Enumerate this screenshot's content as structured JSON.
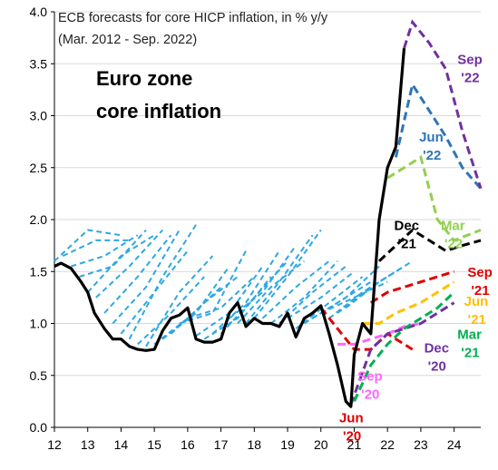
{
  "chart_data": {
    "type": "line",
    "title_line1": "ECB forecasts for core HICP inflation, in % y/y",
    "title_line2": "(Mar. 2012 - Sep. 2022)",
    "heading_line1": "Euro zone",
    "heading_line2": "core inflation",
    "xlim": [
      12,
      24.8
    ],
    "ylim": [
      0.0,
      4.0
    ],
    "x_ticks": [
      {
        "value": 12,
        "label": "12"
      },
      {
        "value": 13,
        "label": "13"
      },
      {
        "value": 14,
        "label": "14"
      },
      {
        "value": 15,
        "label": "15"
      },
      {
        "value": 16,
        "label": "16"
      },
      {
        "value": 17,
        "label": "17"
      },
      {
        "value": 18,
        "label": "18"
      },
      {
        "value": 19,
        "label": "19"
      },
      {
        "value": 20,
        "label": "20"
      },
      {
        "value": 21,
        "label": "21"
      },
      {
        "value": 22,
        "label": "22"
      },
      {
        "value": 23,
        "label": "23"
      },
      {
        "value": 24,
        "label": "24"
      }
    ],
    "y_ticks": [
      {
        "value": 0.0,
        "label": "0.0"
      },
      {
        "value": 0.5,
        "label": "0.5"
      },
      {
        "value": 1.0,
        "label": "1.0"
      },
      {
        "value": 1.5,
        "label": "1.5"
      },
      {
        "value": 2.0,
        "label": "2.0"
      },
      {
        "value": 2.5,
        "label": "2.5"
      },
      {
        "value": 3.0,
        "label": "3.0"
      },
      {
        "value": 3.5,
        "label": "3.5"
      },
      {
        "value": 4.0,
        "label": "4.0"
      }
    ],
    "colors": {
      "actual": "#000000",
      "past_forecasts": "#2ea8e0",
      "jun20": "#e00000",
      "sep20": "#ff66ff",
      "dec20": "#7030a0",
      "mar21": "#00b050",
      "jun21": "#ffc000",
      "sep21": "#e00000",
      "dec21": "#000000",
      "mar22": "#92d050",
      "jun22": "#2e75b6",
      "sep22": "#7030a0"
    },
    "actual": {
      "x": [
        12.0,
        12.2,
        12.5,
        12.8,
        13.0,
        13.2,
        13.5,
        13.75,
        14.0,
        14.25,
        14.5,
        14.75,
        15.0,
        15.25,
        15.5,
        15.75,
        16.0,
        16.25,
        16.5,
        16.75,
        17.0,
        17.25,
        17.5,
        17.75,
        18.0,
        18.25,
        18.5,
        18.75,
        19.0,
        19.25,
        19.5,
        19.75,
        20.0,
        20.25,
        20.5,
        20.75,
        20.9,
        21.0,
        21.25,
        21.5,
        21.75,
        22.0,
        22.25,
        22.5
      ],
      "y": [
        1.55,
        1.58,
        1.53,
        1.4,
        1.3,
        1.1,
        0.95,
        0.85,
        0.85,
        0.78,
        0.75,
        0.74,
        0.75,
        0.93,
        1.05,
        1.08,
        1.15,
        0.85,
        0.82,
        0.82,
        0.85,
        1.1,
        1.2,
        0.97,
        1.05,
        1.0,
        1.0,
        0.97,
        1.1,
        0.87,
        1.05,
        1.1,
        1.17,
        0.9,
        0.6,
        0.25,
        0.2,
        0.7,
        1.0,
        0.9,
        2.0,
        2.5,
        2.7,
        3.65
      ]
    },
    "past_forecasts": [
      {
        "x": [
          12.0,
          13.0,
          14.0
        ],
        "y": [
          1.6,
          1.9,
          1.85
        ]
      },
      {
        "x": [
          12.25,
          13.25,
          14.25
        ],
        "y": [
          1.65,
          1.8,
          1.8
        ]
      },
      {
        "x": [
          12.5,
          13.5,
          14.5
        ],
        "y": [
          1.55,
          1.65,
          1.85
        ]
      },
      {
        "x": [
          12.75,
          13.75,
          14.75
        ],
        "y": [
          1.45,
          1.55,
          1.9
        ]
      },
      {
        "x": [
          13.0,
          14.0,
          15.0
        ],
        "y": [
          1.3,
          1.65,
          1.85
        ]
      },
      {
        "x": [
          13.25,
          14.25,
          15.25
        ],
        "y": [
          1.25,
          1.55,
          1.9
        ]
      },
      {
        "x": [
          13.5,
          14.5,
          15.5
        ],
        "y": [
          1.1,
          1.45,
          1.85
        ]
      },
      {
        "x": [
          13.75,
          14.75,
          15.75
        ],
        "y": [
          1.0,
          1.35,
          1.9
        ]
      },
      {
        "x": [
          14.0,
          15.0,
          16.0
        ],
        "y": [
          0.9,
          1.3,
          1.7
        ]
      },
      {
        "x": [
          14.25,
          15.25,
          16.25
        ],
        "y": [
          0.85,
          1.45,
          1.95
        ]
      },
      {
        "x": [
          14.5,
          15.5,
          16.5
        ],
        "y": [
          0.8,
          1.1,
          1.45
        ]
      },
      {
        "x": [
          14.75,
          15.75,
          16.75
        ],
        "y": [
          0.78,
          1.3,
          1.65
        ]
      },
      {
        "x": [
          15.0,
          16.0,
          17.0
        ],
        "y": [
          0.8,
          1.05,
          1.35
        ]
      },
      {
        "x": [
          15.25,
          16.25,
          17.25
        ],
        "y": [
          0.85,
          1.1,
          1.55
        ]
      },
      {
        "x": [
          15.5,
          16.5,
          17.5
        ],
        "y": [
          0.9,
          1.2,
          1.45
        ]
      },
      {
        "x": [
          15.75,
          16.75,
          17.75
        ],
        "y": [
          1.0,
          1.1,
          1.7
        ]
      },
      {
        "x": [
          16.0,
          17.0,
          18.0
        ],
        "y": [
          1.05,
          1.15,
          1.45
        ]
      },
      {
        "x": [
          16.25,
          17.25,
          18.25
        ],
        "y": [
          0.88,
          1.1,
          1.55
        ]
      },
      {
        "x": [
          16.5,
          17.5,
          18.5
        ],
        "y": [
          0.85,
          1.05,
          1.45
        ]
      },
      {
        "x": [
          16.75,
          17.75,
          18.75
        ],
        "y": [
          0.9,
          1.2,
          1.7
        ]
      },
      {
        "x": [
          17.0,
          18.0,
          19.0
        ],
        "y": [
          0.9,
          1.25,
          1.6
        ]
      },
      {
        "x": [
          17.25,
          18.25,
          19.25
        ],
        "y": [
          1.05,
          1.3,
          1.75
        ]
      },
      {
        "x": [
          17.5,
          18.5,
          19.5
        ],
        "y": [
          1.0,
          1.35,
          1.6
        ]
      },
      {
        "x": [
          17.75,
          18.75,
          19.75
        ],
        "y": [
          1.0,
          1.4,
          1.85
        ]
      },
      {
        "x": [
          18.0,
          19.0,
          20.0
        ],
        "y": [
          1.05,
          1.45,
          1.9
        ]
      },
      {
        "x": [
          18.25,
          19.25,
          20.25
        ],
        "y": [
          1.05,
          1.35,
          1.6
        ]
      },
      {
        "x": [
          18.5,
          19.5,
          20.5
        ],
        "y": [
          1.0,
          1.25,
          1.6
        ]
      },
      {
        "x": [
          18.75,
          19.75,
          20.75
        ],
        "y": [
          1.0,
          1.3,
          1.55
        ]
      },
      {
        "x": [
          19.0,
          20.0,
          21.0
        ],
        "y": [
          1.05,
          1.25,
          1.5
        ]
      },
      {
        "x": [
          19.25,
          20.25,
          21.25
        ],
        "y": [
          0.95,
          1.2,
          1.45
        ]
      },
      {
        "x": [
          19.5,
          20.5,
          21.5
        ],
        "y": [
          1.0,
          1.2,
          1.4
        ]
      },
      {
        "x": [
          19.75,
          20.75,
          21.75
        ],
        "y": [
          1.05,
          1.25,
          1.55
        ]
      },
      {
        "x": [
          20.0,
          21.0,
          22.0
        ],
        "y": [
          1.1,
          1.25,
          1.4
        ]
      },
      {
        "x": [
          20.25,
          21.25,
          22.25
        ],
        "y": [
          1.05,
          1.3,
          1.5
        ]
      },
      {
        "x": [
          20.5,
          21.5,
          22.5
        ],
        "y": [
          1.1,
          1.35,
          1.55
        ]
      },
      {
        "x": [
          20.75,
          21.75,
          22.75
        ],
        "y": [
          1.15,
          1.4,
          1.6
        ]
      }
    ],
    "labeled_forecasts": [
      {
        "key": "jun20",
        "label_top": "Jun",
        "label_bottom": "'20",
        "label_x": 20.55,
        "label_y": 0.05,
        "x": [
          20.0,
          20.5,
          21.0,
          21.5,
          22.0,
          22.75
        ],
        "y": [
          1.15,
          0.95,
          0.75,
          0.75,
          0.9,
          0.75
        ]
      },
      {
        "key": "sep20",
        "label_top": "Sep",
        "label_bottom": "'20",
        "label_x": 21.1,
        "label_y": 0.45,
        "x": [
          20.5,
          21.0,
          21.5,
          22.0,
          22.5,
          23.0
        ],
        "y": [
          0.8,
          0.8,
          0.85,
          0.9,
          0.97,
          1.0
        ]
      },
      {
        "key": "dec20",
        "label_top": "Dec",
        "label_bottom": "'20",
        "label_x": 23.1,
        "label_y": 0.72,
        "x": [
          20.9,
          21.5,
          22.0,
          22.5,
          23.0,
          23.5,
          24.0
        ],
        "y": [
          0.22,
          0.75,
          0.9,
          0.95,
          1.0,
          1.1,
          1.2
        ]
      },
      {
        "key": "mar21",
        "label_top": "Mar",
        "label_bottom": "'21",
        "label_x": 24.1,
        "label_y": 0.85,
        "x": [
          21.0,
          21.5,
          22.0,
          22.5,
          23.0,
          23.5,
          24.0
        ],
        "y": [
          0.25,
          0.6,
          0.8,
          0.95,
          1.05,
          1.15,
          1.3
        ]
      },
      {
        "key": "jun21",
        "label_top": "Jun",
        "label_bottom": "'21",
        "label_x": 24.3,
        "label_y": 1.17,
        "x": [
          21.25,
          21.75,
          22.25,
          23.0,
          23.5,
          24.0
        ],
        "y": [
          1.0,
          1.0,
          1.1,
          1.2,
          1.3,
          1.4
        ]
      },
      {
        "key": "sep21",
        "label_top": "Sep",
        "label_bottom": "'21",
        "label_x": 24.4,
        "label_y": 1.45,
        "x": [
          21.5,
          22.0,
          22.5,
          23.0,
          23.5,
          24.0
        ],
        "y": [
          1.2,
          1.3,
          1.35,
          1.4,
          1.45,
          1.5
        ]
      },
      {
        "key": "dec21",
        "label_top": "Dec",
        "label_bottom": "'21",
        "label_x": 22.2,
        "label_y": 1.9,
        "x": [
          21.75,
          22.25,
          22.75,
          23.25,
          23.75,
          24.25,
          24.8
        ],
        "y": [
          1.6,
          1.75,
          1.9,
          1.8,
          1.7,
          1.75,
          1.8
        ]
      },
      {
        "key": "mar22",
        "label_top": "Mar",
        "label_bottom": "'22",
        "label_x": 23.6,
        "label_y": 1.9,
        "x": [
          22.0,
          22.5,
          23.0,
          23.5,
          24.0,
          24.4,
          24.8
        ],
        "y": [
          2.4,
          2.5,
          2.6,
          2.0,
          1.8,
          1.85,
          1.9
        ]
      },
      {
        "key": "jun22",
        "label_top": "Jun",
        "label_bottom": "'22",
        "label_x": 22.95,
        "label_y": 2.75,
        "x": [
          22.25,
          22.75,
          23.25,
          23.75,
          24.25,
          24.8
        ],
        "y": [
          2.6,
          3.3,
          3.05,
          2.8,
          2.5,
          2.3
        ]
      },
      {
        "key": "sep22",
        "label_top": "Sep",
        "label_bottom": "'22",
        "label_x": 24.1,
        "label_y": 3.5,
        "x": [
          22.5,
          22.75,
          23.25,
          23.75,
          24.25,
          24.8
        ],
        "y": [
          3.65,
          3.9,
          3.7,
          3.45,
          2.85,
          2.3
        ]
      }
    ]
  }
}
